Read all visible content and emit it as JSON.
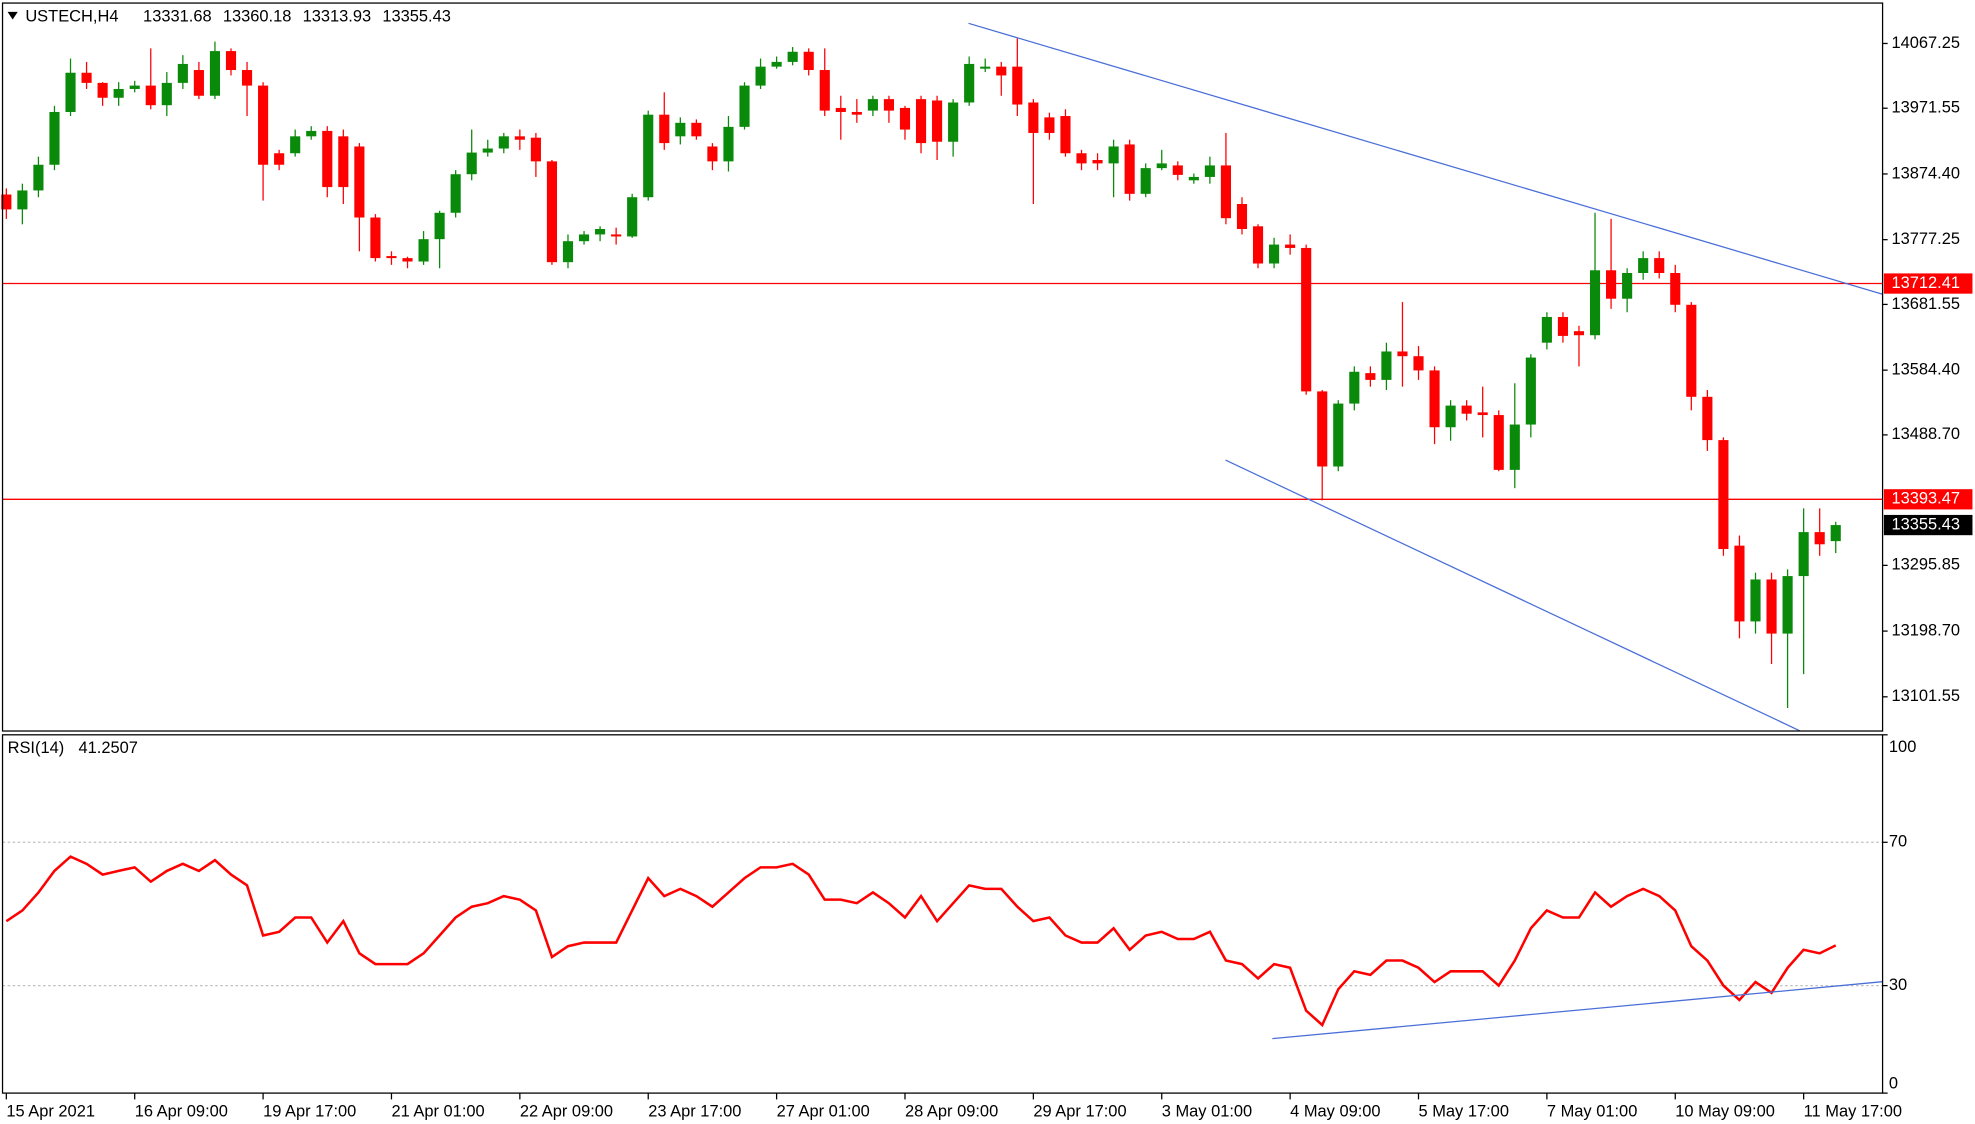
{
  "chart_data": {
    "type": "candlestick",
    "title": "USTECH,H4",
    "categories": [
      "15 Apr 2021",
      null,
      null,
      null,
      null,
      null,
      null,
      null,
      "16 Apr 09:00",
      null,
      null,
      null,
      null,
      null,
      null,
      null,
      "19 Apr 17:00",
      null,
      null,
      null,
      null,
      null,
      null,
      null,
      "21 Apr 01:00",
      null,
      null,
      null,
      null,
      null,
      null,
      null,
      "22 Apr 09:00",
      null,
      null,
      null,
      null,
      null,
      null,
      null,
      "23 Apr 17:00",
      null,
      null,
      null,
      null,
      null,
      null,
      null,
      "27 Apr 01:00",
      null,
      null,
      null,
      null,
      null,
      null,
      null,
      "28 Apr 09:00",
      null,
      null,
      null,
      null,
      null,
      null,
      null,
      "29 Apr 17:00",
      null,
      null,
      null,
      null,
      null,
      null,
      null,
      "3 May 01:00",
      null,
      null,
      null,
      null,
      null,
      null,
      null,
      "4 May 09:00",
      null,
      null,
      null,
      null,
      null,
      null,
      null,
      "5 May 17:00",
      null,
      null,
      null,
      null,
      null,
      null,
      null,
      "7 May 01:00",
      null,
      null,
      null,
      null,
      null,
      null,
      null,
      "10 May 09:00",
      null,
      null,
      null,
      null,
      null,
      null,
      null,
      "11 May 17:00",
      null,
      null
    ],
    "open": [
      13844,
      13822,
      13850,
      13888,
      13966,
      14024,
      14009,
      13987,
      14000,
      14005,
      13976,
      14009,
      14028,
      13990,
      14056,
      14028,
      14005,
      13905,
      13905,
      13930,
      13938,
      13930,
      13915,
      13810,
      13753,
      13750,
      13745,
      13778,
      13817,
      13874,
      13906,
      13912,
      13930,
      13928,
      13893,
      13744,
      13775,
      13785,
      13785,
      13782,
      13840,
      13962,
      13930,
      13950,
      13915,
      13893,
      13944,
      14005,
      14033,
      14040,
      14055,
      14028,
      13972,
      13966,
      13968,
      13985,
      13972,
      13985,
      13983,
      13922,
      13980,
      14030,
      14033,
      14033,
      13980,
      13958,
      13960,
      13905,
      13895,
      13890,
      13918,
      13845,
      13883,
      13887,
      13865,
      13870,
      13887,
      13830,
      13797,
      13742,
      13770,
      13765,
      13553,
      13442,
      13535,
      13580,
      13570,
      13612,
      13605,
      13584,
      13500,
      13532,
      13522,
      13518,
      13437,
      13504,
      13625,
      13663,
      13642,
      13636,
      13732,
      13690,
      13728,
      13750,
      13728,
      13681,
      13545,
      13481,
      13325,
      13213,
      13275,
      13195,
      13280,
      13345,
      13331.68
    ],
    "high": [
      13853,
      13860,
      13900,
      13975,
      14045,
      14040,
      14010,
      14010,
      14012,
      14060,
      14025,
      14050,
      14040,
      14070,
      14060,
      14040,
      14010,
      13910,
      13940,
      13945,
      13945,
      13940,
      13920,
      13815,
      13760,
      13752,
      13790,
      13820,
      13880,
      13940,
      13925,
      13935,
      13940,
      13935,
      13895,
      13785,
      13790,
      13797,
      13795,
      13845,
      13968,
      13995,
      13958,
      13955,
      13920,
      13960,
      14010,
      14045,
      14048,
      14062,
      14060,
      14060,
      13990,
      13985,
      13990,
      13990,
      13975,
      13990,
      13990,
      13985,
      14048,
      14045,
      14040,
      14075,
      13985,
      13965,
      13970,
      13910,
      13905,
      13925,
      13925,
      13890,
      13910,
      13893,
      13875,
      13900,
      13935,
      13840,
      13800,
      13780,
      13785,
      13770,
      13555,
      13540,
      13590,
      13590,
      13625,
      13685,
      13620,
      13590,
      13540,
      13540,
      13560,
      13525,
      13565,
      13608,
      13670,
      13670,
      13650,
      13817,
      13808,
      13735,
      13760,
      13760,
      13740,
      13685,
      13555,
      13485,
      13340,
      13285,
      13285,
      13290,
      13380,
      13380,
      13360.18
    ],
    "low": [
      13808,
      13800,
      13840,
      13880,
      13960,
      14000,
      13975,
      13975,
      13995,
      13970,
      13960,
      14000,
      13985,
      13985,
      14020,
      13960,
      13835,
      13880,
      13900,
      13925,
      13840,
      13830,
      13760,
      13745,
      13740,
      13735,
      13740,
      13735,
      13810,
      13865,
      13900,
      13905,
      13910,
      13870,
      13740,
      13735,
      13770,
      13775,
      13770,
      13780,
      13835,
      13910,
      13918,
      13925,
      13880,
      13878,
      13940,
      14000,
      14030,
      14035,
      14020,
      13960,
      13925,
      13950,
      13960,
      13950,
      13925,
      13905,
      13895,
      13900,
      13975,
      14025,
      13990,
      13960,
      13830,
      13925,
      13900,
      13880,
      13880,
      13840,
      13835,
      13840,
      13880,
      13865,
      13860,
      13860,
      13800,
      13785,
      13735,
      13735,
      13755,
      13548,
      13392,
      13435,
      13525,
      13560,
      13555,
      13560,
      13570,
      13475,
      13480,
      13510,
      13485,
      13435,
      13410,
      13485,
      13615,
      13625,
      13590,
      13630,
      13675,
      13670,
      13718,
      13720,
      13670,
      13525,
      13465,
      13310,
      13188,
      13195,
      13150,
      13085,
      13135,
      13310,
      13313.93
    ],
    "close": [
      13822,
      13850,
      13888,
      13966,
      14024,
      14009,
      13987,
      14000,
      14005,
      13976,
      14009,
      14037,
      13990,
      14056,
      14028,
      14005,
      13888,
      13888,
      13930,
      13938,
      13855,
      13855,
      13810,
      13750,
      13750,
      13745,
      13778,
      13817,
      13874,
      13906,
      13912,
      13930,
      13925,
      13893,
      13744,
      13775,
      13785,
      13793,
      13782,
      13840,
      13962,
      13920,
      13950,
      13930,
      13893,
      13944,
      14005,
      14033,
      14040,
      14055,
      14028,
      13968,
      13966,
      13962,
      13985,
      13968,
      13940,
      13920,
      13922,
      13980,
      14037,
      14033,
      14020,
      13977,
      13935,
      13935,
      13905,
      13890,
      13890,
      13915,
      13845,
      13883,
      13890,
      13873,
      13870,
      13887,
      13809,
      13793,
      13742,
      13770,
      13765,
      13553,
      13442,
      13535,
      13582,
      13570,
      13612,
      13605,
      13584,
      13500,
      13532,
      13520,
      13518,
      13437,
      13504,
      13603,
      13663,
      13635,
      13636,
      13732,
      13690,
      13728,
      13750,
      13728,
      13681,
      13545,
      13481,
      13320,
      13213,
      13275,
      13195,
      13280,
      13345,
      13327,
      13355.43
    ],
    "up_color": "#0a8a0a",
    "down_color": "#ff0000",
    "ylim": [
      13051,
      14127
    ],
    "yticks": [
      14067.25,
      13971.55,
      {
        "value": 13874.4,
        "label": "13874.40"
      },
      13777.25,
      13681.55,
      {
        "value": 13584.4,
        "label": "13584.40"
      },
      {
        "value": 13488.7,
        "label": "13488.70"
      },
      13295.85,
      {
        "value": 13198.7,
        "label": "13198.70"
      },
      13101.55
    ],
    "price_lines": [
      {
        "value": 13712.41,
        "color": "#ff0000"
      },
      {
        "value": 13393.47,
        "color": "#ff0000"
      }
    ],
    "indicator": {
      "type": "line",
      "name": "RSI(14)",
      "color": "#ff0000",
      "values": [
        48,
        51,
        56,
        62,
        66,
        64,
        61,
        62,
        63,
        59,
        62,
        64,
        62,
        65,
        61,
        58,
        44,
        45,
        49,
        49,
        42,
        48,
        39,
        36,
        36,
        36,
        39,
        44,
        49,
        52,
        53,
        55,
        54,
        51,
        38,
        41,
        42,
        42,
        42,
        51,
        60,
        55,
        57,
        55,
        52,
        56,
        60,
        63,
        63,
        64,
        61,
        54,
        54,
        53,
        56,
        53,
        49,
        55,
        48,
        53,
        58,
        57,
        57,
        52,
        48,
        49,
        44,
        42,
        42,
        46,
        40,
        44,
        45,
        43,
        43,
        45,
        37,
        36,
        32,
        36,
        35,
        23,
        19,
        29,
        34,
        33,
        37,
        37,
        35,
        31,
        34,
        34,
        34,
        30,
        37,
        46,
        51,
        49,
        49,
        56,
        52,
        55,
        57,
        55,
        51,
        41,
        37,
        30,
        26,
        31,
        28,
        35,
        40,
        39,
        41.2507
      ],
      "ylim": [
        0,
        100
      ],
      "yticks": [
        100,
        70,
        30,
        0
      ],
      "levels": [
        70,
        30
      ]
    }
  }
}
